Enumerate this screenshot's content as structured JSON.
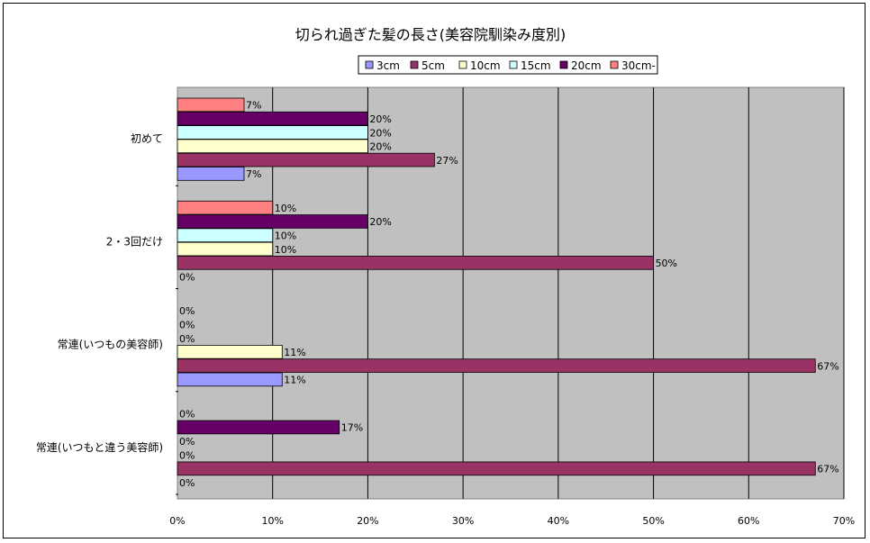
{
  "chart_data": {
    "type": "bar",
    "orientation": "horizontal",
    "title": "切られ過ぎた髪の長さ(美容院馴染み度別)",
    "categories": [
      "初めて",
      "2・3回だけ",
      "常連(いつもの美容師)",
      "常連(いつもと違う美容師)"
    ],
    "series": [
      {
        "name": "3cm",
        "values": [
          7,
          0,
          11,
          0
        ],
        "labels": [
          "7%",
          "0%",
          "11%",
          "0%"
        ],
        "color": "#9999ff"
      },
      {
        "name": "5cm",
        "values": [
          27,
          50,
          67,
          67
        ],
        "labels": [
          "27%",
          "50%",
          "67%",
          "67%"
        ],
        "color": "#993366"
      },
      {
        "name": "10cm",
        "values": [
          20,
          10,
          11,
          0
        ],
        "labels": [
          "20%",
          "10%",
          "11%",
          "0%"
        ],
        "color": "#ffffcc"
      },
      {
        "name": "15cm",
        "values": [
          20,
          10,
          0,
          0
        ],
        "labels": [
          "20%",
          "10%",
          "0%",
          "0%"
        ],
        "color": "#ccffff"
      },
      {
        "name": "20cm",
        "values": [
          20,
          20,
          0,
          17
        ],
        "labels": [
          "20%",
          "20%",
          "0%",
          "17%"
        ],
        "color": "#660066"
      },
      {
        "name": "30cm-",
        "values": [
          7,
          10,
          0,
          0
        ],
        "labels": [
          "7%",
          "10%",
          "0%",
          "0%"
        ],
        "color": "#ff8080"
      }
    ],
    "xlim": [
      0,
      70
    ],
    "xticks": [
      "0%",
      "10%",
      "20%",
      "30%",
      "40%",
      "50%",
      "60%",
      "70%"
    ],
    "grid": true,
    "plot_background": "#c0c0c0",
    "legend": "top-center"
  }
}
